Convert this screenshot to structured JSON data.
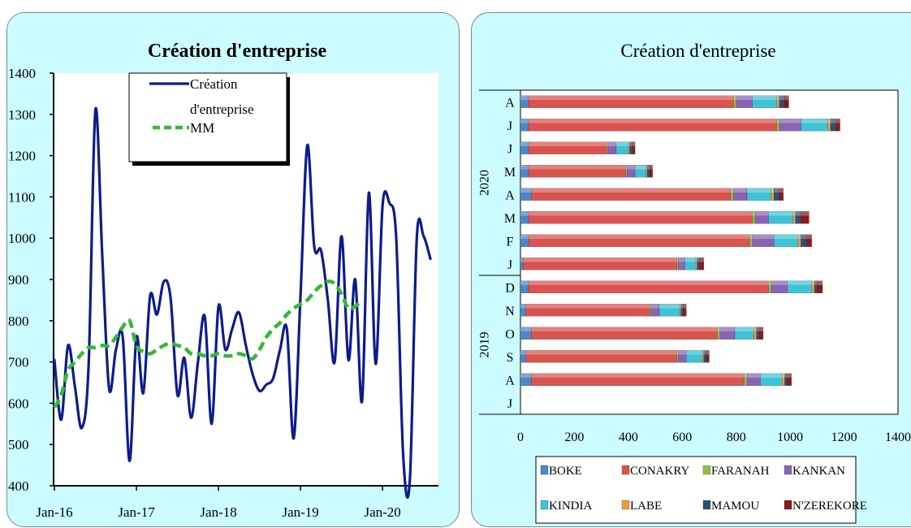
{
  "chart_data": [
    {
      "type": "line",
      "title": "Création d'entreprise",
      "ylim": [
        400,
        1400
      ],
      "yticks": [
        400,
        500,
        600,
        700,
        800,
        900,
        1000,
        1100,
        1200,
        1300,
        1400
      ],
      "xtick_labels": [
        "Jan-16",
        "Jan-17",
        "Jan-18",
        "Jan-19",
        "Jan-20"
      ],
      "grid": false,
      "legend_position": "top-center",
      "legend_label_lines": [
        "Création",
        "d'entreprise"
      ],
      "series": [
        {
          "name": "Création d'entreprise",
          "color": "#0c1c8c",
          "style": "solid",
          "start": "2016-01",
          "values": [
            705,
            560,
            740,
            640,
            540,
            690,
            1310,
            960,
            635,
            730,
            760,
            460,
            760,
            625,
            860,
            815,
            895,
            855,
            620,
            710,
            565,
            700,
            810,
            550,
            835,
            730,
            780,
            820,
            740,
            670,
            630,
            645,
            660,
            730,
            780,
            515,
            860,
            1225,
            980,
            970,
            850,
            700,
            1005,
            705,
            900,
            605,
            1110,
            695,
            1080,
            1085,
            1000,
            480,
            415,
            1000,
            1005,
            950
          ]
        },
        {
          "name": "MM",
          "color": "#33bb33",
          "style": "dashed",
          "start": "2016-01",
          "values": [
            590,
            620,
            680,
            700,
            720,
            735,
            735,
            740,
            740,
            760,
            785,
            800,
            740,
            725,
            720,
            730,
            740,
            745,
            740,
            735,
            720,
            720,
            715,
            715,
            720,
            715,
            715,
            720,
            715,
            708,
            730,
            760,
            780,
            795,
            815,
            830,
            840,
            850,
            870,
            885,
            895,
            890,
            865,
            830,
            835,
            850
          ]
        }
      ]
    },
    {
      "type": "bar",
      "orientation": "horizontal",
      "stacked": true,
      "title": "Création d'entreprise",
      "xlim": [
        0,
        1400
      ],
      "xticks": [
        0,
        200,
        400,
        600,
        800,
        1000,
        1200,
        1400
      ],
      "grid": false,
      "legend_position": "bottom",
      "categories": [
        "J",
        "A",
        "S",
        "O",
        "N",
        "D",
        "J",
        "F",
        "M",
        "A",
        "M",
        "J",
        "J",
        "A"
      ],
      "groups": [
        {
          "label": "2019",
          "from": 0,
          "to": 5
        },
        {
          "label": "2020",
          "from": 6,
          "to": 13
        }
      ],
      "series": [
        {
          "name": "BOKE",
          "color": "#4f86c6",
          "values": [
            0,
            40,
            20,
            40,
            20,
            30,
            10,
            30,
            30,
            40,
            30,
            30,
            30,
            30
          ]
        },
        {
          "name": "CONAKRY",
          "color": "#d9534f",
          "values": [
            0,
            790,
            560,
            690,
            460,
            890,
            570,
            820,
            830,
            740,
            360,
            290,
            920,
            760
          ]
        },
        {
          "name": "FARANAH",
          "color": "#8ec04a",
          "values": [
            0,
            10,
            5,
            10,
            5,
            10,
            5,
            10,
            10,
            10,
            5,
            5,
            10,
            10
          ]
        },
        {
          "name": "KANKAN",
          "color": "#8a63b5",
          "values": [
            0,
            50,
            30,
            55,
            30,
            60,
            25,
            80,
            50,
            50,
            30,
            30,
            80,
            60
          ]
        },
        {
          "name": "KINDIA",
          "color": "#3ec3d6",
          "values": [
            0,
            80,
            60,
            70,
            75,
            90,
            40,
            90,
            90,
            90,
            40,
            45,
            100,
            90
          ]
        },
        {
          "name": "LABE",
          "color": "#f29b34",
          "values": [
            0,
            10,
            5,
            10,
            5,
            10,
            5,
            10,
            10,
            10,
            5,
            5,
            10,
            10
          ]
        },
        {
          "name": "MAMOU",
          "color": "#2d4f7f",
          "values": [
            0,
            10,
            10,
            10,
            10,
            10,
            10,
            20,
            20,
            20,
            10,
            10,
            20,
            20
          ]
        },
        {
          "name": "N'ZEREKORE",
          "color": "#8b1a1a",
          "values": [
            0,
            15,
            10,
            15,
            10,
            20,
            15,
            20,
            30,
            15,
            10,
            10,
            15,
            15
          ]
        }
      ]
    }
  ]
}
